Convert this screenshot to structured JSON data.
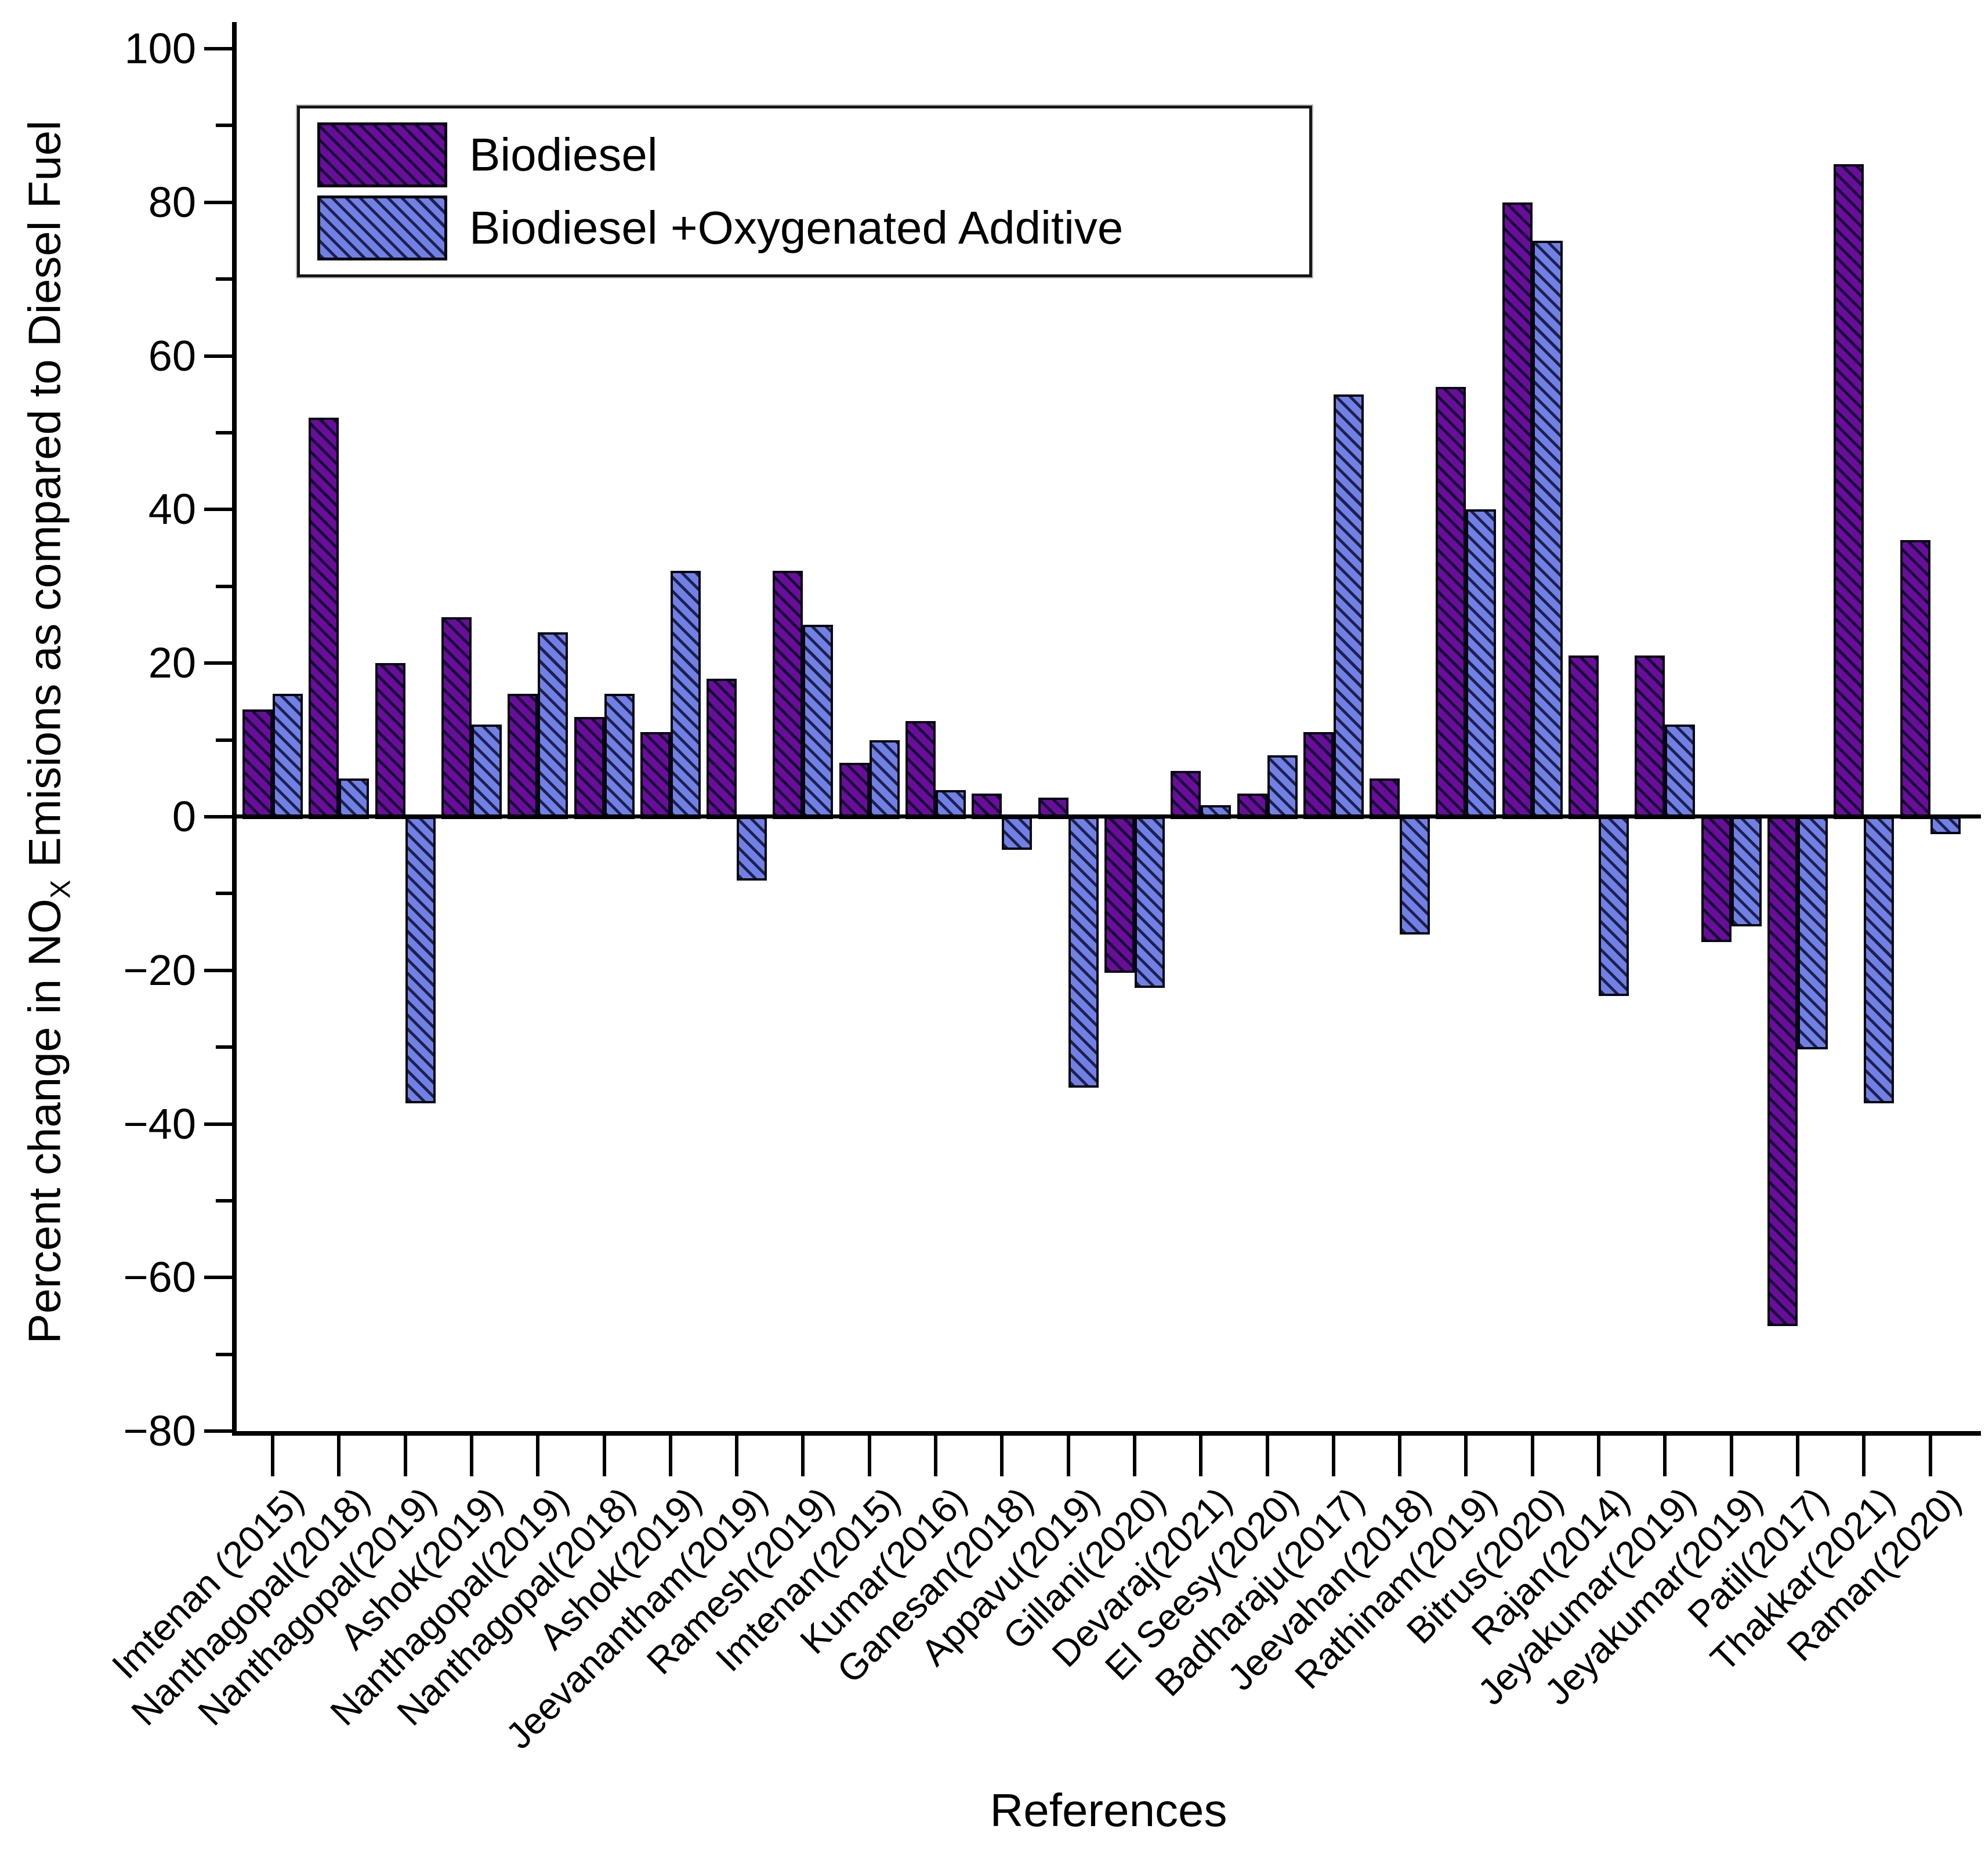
{
  "chart_data": {
    "type": "bar",
    "title": "",
    "xlabel": "References",
    "ylabel": {
      "prefix": "Percent change in NO",
      "subscript": "X",
      "suffix": " Emisions as compared to Diesel Fuel"
    },
    "ylim": [
      -80,
      100
    ],
    "yticks_major": [
      100,
      80,
      60,
      40,
      20,
      0,
      -20,
      -40,
      -60,
      -80
    ],
    "yticks_minor": [
      90,
      70,
      50,
      30,
      10,
      -10,
      -30,
      -50,
      -70
    ],
    "grid": false,
    "legend_position": "top-left",
    "categories": [
      "Imtenan (2015)",
      "Nanthagopal(2018)",
      "Nanthagopal(2019)",
      "Ashok(2019)",
      "Nanthagopal(2019)",
      "Nanthagopal(2018)",
      "Ashok(2019)",
      "Jeevanantham(2019)",
      "Ramesh(2019)",
      "Imtenan(2015)",
      "Kumar(2016)",
      "Ganesan(2018)",
      "Appavu(2019)",
      "Gillani(2020)",
      "Devaraj(2021)",
      "El Seesy(2020)",
      "Badharaju(2017)",
      "Jeevahan(2018)",
      "Rathinam(2019)",
      "Bitrus(2020)",
      "Rajan(2014)",
      "Jeyakumar(2019)",
      "Jeyakumar(2019)",
      "Patil(2017)",
      "Thakkar(2021)",
      "Raman(2020)"
    ],
    "series": [
      {
        "name": "Biodiesel",
        "color": "#6A0D9A",
        "values": [
          14,
          52,
          20,
          26,
          16,
          13,
          11,
          18,
          32,
          7,
          12.5,
          3,
          2.5,
          -20,
          6,
          3,
          11,
          5,
          56,
          80,
          21,
          21,
          -16,
          -66,
          85,
          36
        ]
      },
      {
        "name": "Biodiesel +Oxygenated Additive",
        "color": "#7080E5",
        "values": [
          16,
          5,
          -37,
          12,
          24,
          16,
          32,
          -8,
          25,
          10,
          3.5,
          -4,
          -35,
          -22,
          1.5,
          8,
          55,
          -15,
          40,
          75,
          -23,
          12,
          -14,
          -30,
          -37,
          -2
        ]
      }
    ]
  },
  "legend": {
    "items": [
      {
        "label": "Biodiesel",
        "swatch_color": "#6A0D9A"
      },
      {
        "label": "Biodiesel +Oxygenated Additive",
        "swatch_color": "#7080E5"
      }
    ]
  },
  "colors": {
    "background": "#ffffff",
    "axis": "#000000",
    "bar_outline": "#06060f",
    "series_biodiesel": "#6A0D9A",
    "series_biodiesel_additive": "#7080E5"
  }
}
